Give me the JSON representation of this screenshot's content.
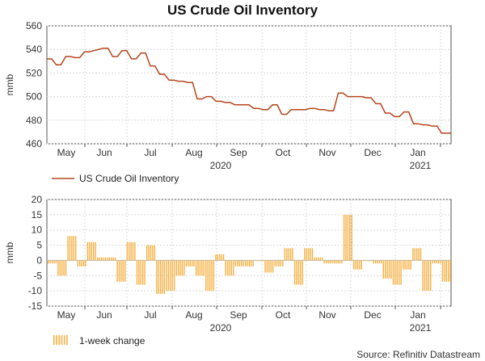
{
  "chart_data": [
    {
      "type": "line",
      "title": "US Crude Oil Inventory",
      "ylabel": "mmb",
      "ylim": [
        460,
        560
      ],
      "yticks": [
        460,
        480,
        500,
        520,
        540,
        560
      ],
      "month_labels": [
        "May",
        "Jun",
        "Jul",
        "Aug",
        "Sep",
        "Oct",
        "Nov",
        "Dec",
        "Jan"
      ],
      "year_labels": [
        "2020",
        "2021"
      ],
      "grid": true,
      "color": "#b5451b",
      "legend": "US Crude Oil Inventory",
      "series": [
        {
          "name": "US Crude Oil Inventory",
          "values": [
            532,
            532,
            527,
            527,
            534,
            534,
            533,
            533,
            538,
            538,
            539,
            540,
            541,
            541,
            534,
            534,
            539,
            539,
            532,
            532,
            537,
            537,
            526,
            526,
            519,
            519,
            514,
            514,
            513,
            513,
            512,
            512,
            498,
            498,
            500,
            500,
            496,
            496,
            495,
            495,
            493,
            493,
            493,
            493,
            490,
            490,
            489,
            489,
            493,
            493,
            485,
            485,
            489,
            489,
            489,
            489,
            490,
            490,
            489,
            489,
            488,
            488,
            503,
            503,
            500,
            500,
            500,
            500,
            499,
            499,
            494,
            494,
            486,
            486,
            483,
            483,
            487,
            487,
            477,
            477,
            476,
            476,
            475,
            475,
            469,
            469
          ]
        }
      ]
    },
    {
      "type": "bar",
      "title": "",
      "ylabel": "mmb",
      "ylim": [
        -15,
        20
      ],
      "yticks": [
        -15,
        -10,
        -5,
        0,
        5,
        10,
        15,
        20
      ],
      "month_labels": [
        "May",
        "Jun",
        "Jul",
        "Aug",
        "Sep",
        "Oct",
        "Nov",
        "Dec",
        "Jan"
      ],
      "year_labels": [
        "2020",
        "2021"
      ],
      "grid": true,
      "color": "#f5b041",
      "legend": "1-week change",
      "series": [
        {
          "name": "1-week change",
          "values": [
            -1,
            -5,
            8,
            -2,
            6,
            1,
            1,
            -7,
            6,
            -8,
            5,
            -11,
            -10,
            -5,
            -2,
            -5,
            -10,
            2,
            -5,
            -2,
            -2,
            0,
            -4,
            -2,
            4,
            -8,
            4,
            1,
            -1,
            -1,
            15,
            -3,
            0,
            -1,
            -6,
            -8,
            -3,
            4,
            -10,
            -1,
            -7
          ]
        }
      ]
    }
  ],
  "source": "Source: Refinitiv Datastream"
}
